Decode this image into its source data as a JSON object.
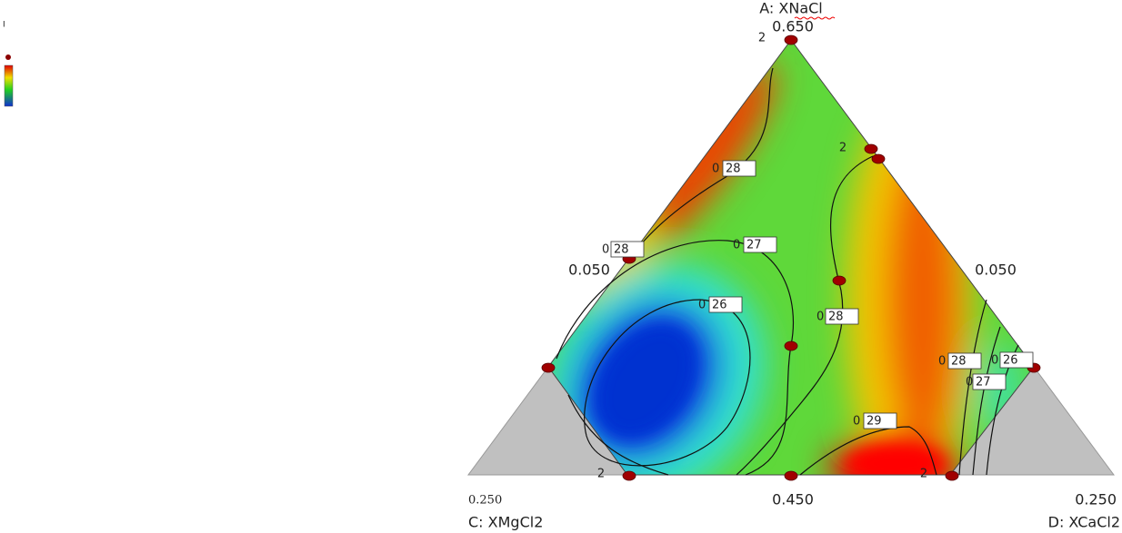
{
  "chart_data": {
    "type": "ternary-contour",
    "legend_mark": "I",
    "apex_label": "A: XNaCl",
    "apex_value": "0.650",
    "left_side_value": "0.050",
    "right_side_value": "0.050",
    "bottom_left_value": "0.250",
    "bottom_mid_value": "0.450",
    "bottom_right_value": "0.250",
    "left_label": "C: XMgCl2",
    "right_label": "D: XCaCl2",
    "point_counts": [
      "2",
      "2",
      "2",
      "2"
    ],
    "contour_labels": [
      {
        "prefix": "0",
        "text": "28"
      },
      {
        "prefix": "0",
        "text": "28"
      },
      {
        "prefix": "0",
        "text": "27"
      },
      {
        "prefix": "0",
        "text": "26"
      },
      {
        "prefix": "0",
        "text": "28"
      },
      {
        "prefix": "0",
        "text": "29"
      },
      {
        "prefix": "0",
        "text": "28"
      },
      {
        "prefix": "0",
        "text": "26"
      },
      {
        "prefix": "0",
        "text": "27"
      }
    ]
  }
}
